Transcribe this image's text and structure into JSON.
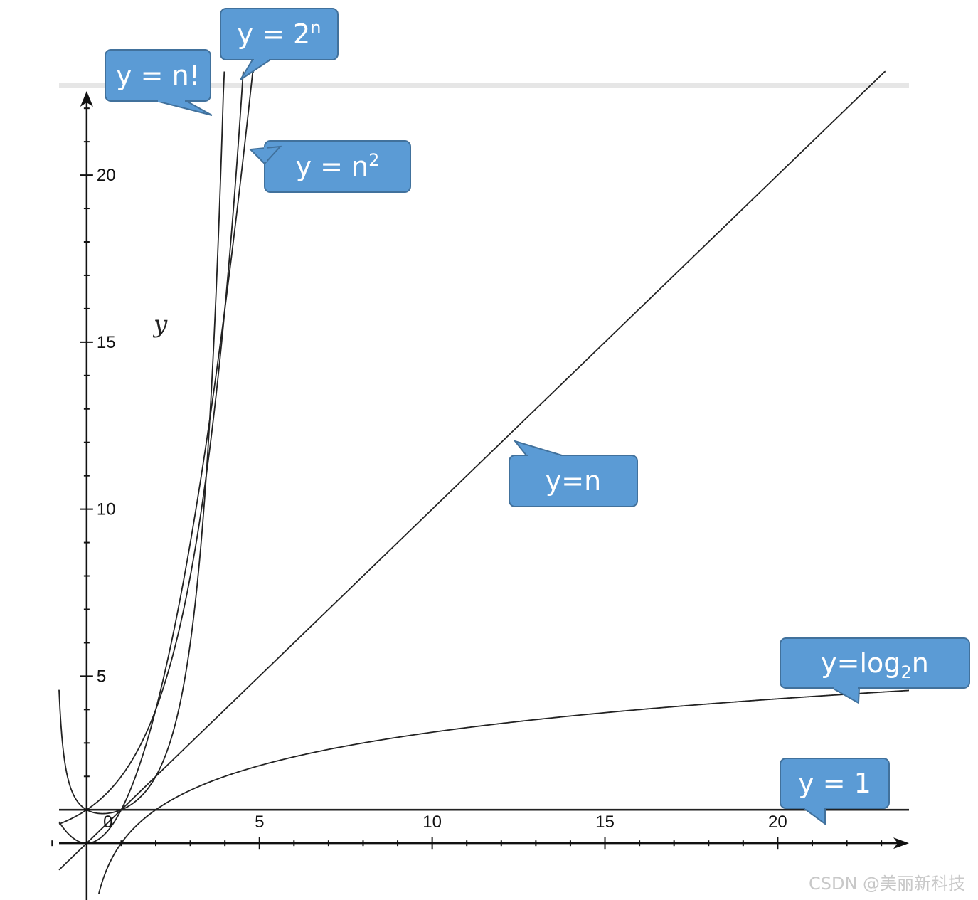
{
  "chart_data": {
    "type": "line",
    "xlabel": "",
    "ylabel": "y",
    "xlim": [
      -0.8,
      23.8
    ],
    "ylim": [
      -1.7,
      22.6
    ],
    "x_ticks": [
      0,
      5,
      10,
      15,
      20
    ],
    "x_tick_labels": [
      "0",
      "5",
      "10",
      "15",
      "20"
    ],
    "y_ticks": [
      5,
      10,
      15,
      20
    ],
    "y_tick_labels": [
      "5",
      "10",
      "15",
      "20"
    ],
    "grid": false,
    "series": [
      {
        "name": "y = n!",
        "label_main": "y = n!",
        "label_sup": "",
        "label_sub": "",
        "label_tail": "",
        "fn": "factorial",
        "x": [
          0,
          1,
          2,
          3,
          3.5,
          4
        ],
        "y": [
          1,
          1,
          2,
          6,
          11.6,
          24
        ]
      },
      {
        "name": "y = 2^n",
        "label_main": "y = 2",
        "label_sup": "n",
        "label_sub": "",
        "label_tail": "",
        "fn": "exp2",
        "x": [
          0,
          1,
          2,
          3,
          4,
          4.5
        ],
        "y": [
          1,
          2,
          4,
          8,
          16,
          22.6
        ]
      },
      {
        "name": "y = n^2",
        "label_main": "y = n",
        "label_sup": "2",
        "label_sub": "",
        "label_tail": "",
        "fn": "square",
        "x": [
          0,
          1,
          2,
          3,
          4,
          4.7
        ],
        "y": [
          0,
          1,
          4,
          9,
          16,
          22.1
        ]
      },
      {
        "name": "y=n",
        "label_main": "y=n",
        "label_sup": "",
        "label_sub": "",
        "label_tail": "",
        "fn": "linear",
        "x": [
          0,
          10,
          20,
          22.6
        ],
        "y": [
          0,
          10,
          20,
          22.6
        ]
      },
      {
        "name": "y=log2n",
        "label_main": "y=log",
        "label_sup": "",
        "label_sub": "2",
        "label_tail": "n",
        "fn": "log2",
        "x": [
          0.5,
          1,
          2,
          4,
          8,
          16,
          23.8
        ],
        "y": [
          -1,
          0,
          1,
          2,
          3,
          4,
          4.57
        ]
      },
      {
        "name": "y = 1",
        "label_main": "y = 1",
        "label_sup": "",
        "label_sub": "",
        "label_tail": "",
        "fn": "constant",
        "x": [
          -0.8,
          23.8
        ],
        "y": [
          1,
          1
        ]
      }
    ]
  },
  "watermark": "CSDN @美丽新科技",
  "colors": {
    "callout_fill": "#5b9bd5",
    "callout_stroke": "#41719c",
    "curve": "#222222",
    "axis": "#111111"
  }
}
